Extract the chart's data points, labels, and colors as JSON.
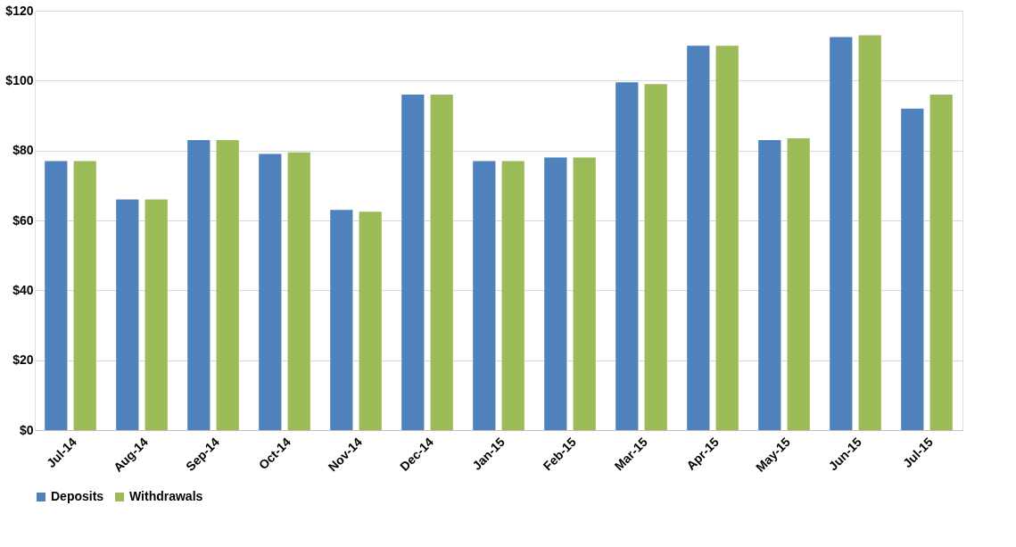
{
  "chart_data": {
    "type": "bar",
    "categories": [
      "Jul-14",
      "Aug-14",
      "Sep-14",
      "Oct-14",
      "Nov-14",
      "Dec-14",
      "Jan-15",
      "Feb-15",
      "Mar-15",
      "Apr-15",
      "May-15",
      "Jun-15",
      "Jul-15"
    ],
    "series": [
      {
        "name": "Deposits",
        "color": "#4f81bd",
        "values": [
          77,
          66,
          83,
          79,
          63,
          96,
          77,
          78,
          99.5,
          110,
          83,
          112.5,
          92
        ]
      },
      {
        "name": "Withdrawals",
        "color": "#9bbb59",
        "values": [
          77,
          66,
          83,
          79.5,
          62.5,
          96,
          77,
          78,
          99,
          110,
          83.5,
          113,
          96
        ]
      }
    ],
    "ylim": [
      0,
      120
    ],
    "yticks": [
      {
        "value": 0,
        "label": "$0"
      },
      {
        "value": 20,
        "label": "$20"
      },
      {
        "value": 40,
        "label": "$40"
      },
      {
        "value": 60,
        "label": "$60"
      },
      {
        "value": 80,
        "label": "$80"
      },
      {
        "value": 100,
        "label": "$100"
      },
      {
        "value": 120,
        "label": "$120"
      }
    ],
    "grid": "y",
    "legend": "bottom"
  }
}
